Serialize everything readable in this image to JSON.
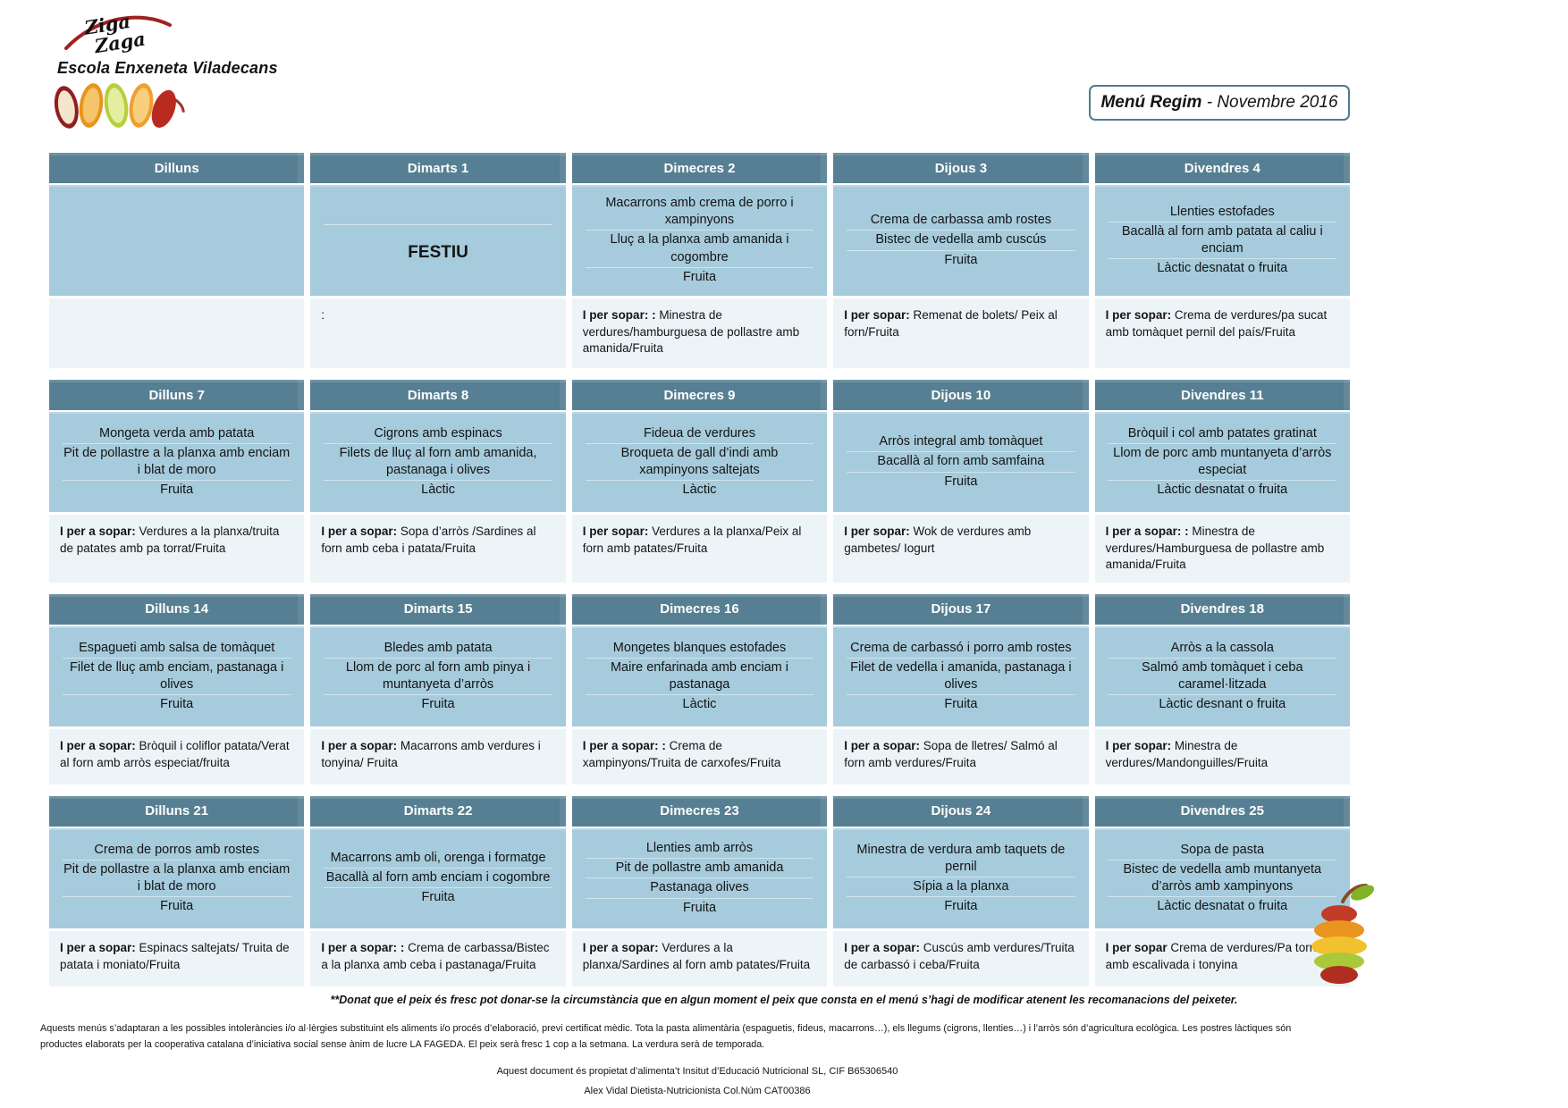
{
  "page": {
    "school_name": "Escola Enxeneta Viladecans",
    "title_bold": "Menú Regim",
    "title_rest": " - Novembre 2016"
  },
  "logo": {
    "line1": "Ziga",
    "line2": "Zaga"
  },
  "theme": {
    "header_bg": "#567f93",
    "menu_bg": "#a6cbdc",
    "sopar_bg": "#edf4f8",
    "title_border": "#4d7b90",
    "accent_red": "#9e2120"
  },
  "weeks": [
    {
      "days": [
        {
          "header": "Dilluns",
          "festiu": "",
          "menu": [],
          "sopar_prefix": "",
          "sopar_text": ""
        },
        {
          "header": "Dimarts 1",
          "festiu": "FESTIU",
          "menu": [],
          "sopar_prefix": "",
          "sopar_text": ":"
        },
        {
          "header": "Dimecres 2",
          "festiu": "",
          "menu": [
            "Macarrons amb crema de porro i xampinyons",
            "Lluç a la planxa  amb amanida i cogombre",
            "Fruita"
          ],
          "sopar_prefix": "I per sopar: :",
          "sopar_text": " Minestra de verdures/hamburguesa de pollastre amb amanida/Fruita"
        },
        {
          "header": "Dijous 3",
          "festiu": "",
          "menu": [
            "Crema de carbassa amb rostes",
            "Bistec de vedella amb cuscús",
            "Fruita"
          ],
          "sopar_prefix": "I per sopar:",
          "sopar_text": " Remenat de bolets/ Peix al forn/Fruita"
        },
        {
          "header": "Divendres 4",
          "festiu": "",
          "menu": [
            "Llenties estofades",
            "Bacallà al forn amb patata al caliu i enciam",
            "Làctic desnatat o fruita"
          ],
          "sopar_prefix": "I per sopar:",
          "sopar_text": " Crema de verdures/pa sucat amb tomàquet pernil del país/Fruita"
        }
      ]
    },
    {
      "days": [
        {
          "header": "Dilluns 7",
          "festiu": "",
          "menu": [
            "Mongeta verda amb patata",
            "Pit de pollastre a la planxa amb enciam i blat de moro",
            "Fruita"
          ],
          "sopar_prefix": "I per a sopar:",
          "sopar_text": "  Verdures a la planxa/truita de patates amb pa torrat/Fruita"
        },
        {
          "header": "Dimarts 8",
          "festiu": "",
          "menu": [
            "Cigrons amb espinacs",
            "Filets de lluç al forn amb amanida, pastanaga i olives",
            "Làctic"
          ],
          "sopar_prefix": "I per a sopar:",
          "sopar_text": "  Sopa d’arròs /Sardines al forn amb ceba i patata/Fruita"
        },
        {
          "header": "Dimecres 9",
          "festiu": "",
          "menu": [
            "Fideua de verdures",
            "Broqueta de gall d’indi amb xampinyons saltejats",
            "Làctic"
          ],
          "sopar_prefix": "I per sopar:",
          "sopar_text": " Verdures a la planxa/Peix al forn amb patates/Fruita"
        },
        {
          "header": "Dijous 10",
          "festiu": "",
          "menu": [
            "Arròs integral amb tomàquet",
            "Bacallà al forn amb samfaina",
            "Fruita"
          ],
          "sopar_prefix": "I per sopar:",
          "sopar_text": "  Wok de verdures amb gambetes/ Iogurt"
        },
        {
          "header": "Divendres 11",
          "festiu": "",
          "menu": [
            "Bròquil i col amb patates gratinat",
            "Llom de porc amb muntanyeta d’arròs especiat",
            "Làctic desnatat o fruita"
          ],
          "sopar_prefix": "I per a sopar: :",
          "sopar_text": "  Minestra de verdures/Hamburguesa de pollastre amb amanida/Fruita"
        }
      ]
    },
    {
      "days": [
        {
          "header": "Dilluns 14",
          "festiu": "",
          "menu": [
            "Espagueti amb salsa de tomàquet",
            "Filet de lluç amb enciam, pastanaga i olives",
            "Fruita"
          ],
          "sopar_prefix": "I per a sopar:",
          "sopar_text": "  Bròquil i coliflor patata/Verat al forn amb arròs especiat/fruita"
        },
        {
          "header": "Dimarts 15",
          "festiu": "",
          "menu": [
            "Bledes amb patata",
            "Llom de porc al forn amb pinya i muntanyeta d’arròs",
            "Fruita"
          ],
          "sopar_prefix": "I per a sopar:",
          "sopar_text": " Macarrons amb verdures i tonyina/ Fruita"
        },
        {
          "header": "Dimecres 16",
          "festiu": "",
          "menu": [
            "Mongetes blanques estofades",
            "Maire enfarinada amb enciam i pastanaga",
            "Làctic"
          ],
          "sopar_prefix": "I  per a sopar: :",
          "sopar_text": "  Crema de xampinyons/Truita de carxofes/Fruita"
        },
        {
          "header": "Dijous 17",
          "festiu": "",
          "menu": [
            "Crema de carbassó i porro amb rostes",
            "Filet de vedella i amanida, pastanaga i olives",
            "Fruita"
          ],
          "sopar_prefix": "I  per a sopar:",
          "sopar_text": "  Sopa de lletres/ Salmó al forn amb verdures/Fruita"
        },
        {
          "header": "Divendres 18",
          "festiu": "",
          "menu": [
            "Arròs a la cassola",
            "Salmó amb tomàquet i ceba caramel·litzada",
            "Làctic desnant o fruita"
          ],
          "sopar_prefix": "I per sopar:",
          "sopar_text": " Minestra de verdures/Mandonguilles/Fruita"
        }
      ]
    },
    {
      "days": [
        {
          "header": "Dilluns 21",
          "festiu": "",
          "menu": [
            "Crema de porros amb rostes",
            "Pit de pollastre a la planxa amb enciam i blat de moro",
            "Fruita"
          ],
          "sopar_prefix": "I per a sopar:",
          "sopar_text": "  Espinacs saltejats/ Truita de patata i moniato/Fruita"
        },
        {
          "header": "Dimarts 22",
          "festiu": "",
          "menu": [
            "Macarrons amb oli, orenga i formatge",
            "Bacallà al forn amb enciam i cogombre",
            "Fruita"
          ],
          "sopar_prefix": "I per a sopar: :",
          "sopar_text": " Crema de carbassa/Bistec a la planxa amb ceba i pastanaga/Fruita"
        },
        {
          "header": "Dimecres 23",
          "festiu": "",
          "menu": [
            "Llenties amb arròs",
            "Pit de pollastre amb amanida",
            "Pastanaga olives",
            "Fruita"
          ],
          "sopar_prefix": "I  per a sopar:",
          "sopar_text": "  Verdures a la planxa/Sardines al forn amb patates/Fruita"
        },
        {
          "header": "Dijous 24",
          "festiu": "",
          "menu": [
            "Minestra de verdura amb taquets de pernil",
            "Sípia a la planxa",
            "Fruita"
          ],
          "sopar_prefix": "I  per a sopar:",
          "sopar_text": "  Cuscús amb verdures/Truita de carbassó i ceba/Fruita"
        },
        {
          "header": "Divendres 25",
          "festiu": "",
          "menu": [
            "Sopa de pasta",
            "Bistec de vedella amb muntanyeta d’arròs amb xampinyons",
            "Làctic desnatat o fruita"
          ],
          "sopar_prefix": "I per sopar",
          "sopar_text": " Crema de verdures/Pa torrat amb escalivada i tonyina"
        }
      ]
    }
  ],
  "footer": {
    "fish_note": "**Donat que el peix és fresc pot donar-se la circumstància que en algun moment el peix que consta en el menú s’hagi de modificar atenent les recomanacions del peixeter.",
    "allergen_note": "Aquests menús s’adaptaran a les possibles intoleràncies i/o al·lèrgies substituint els aliments i/o procés d’elaboració, previ certificat mèdic. Tota la pasta alimentària (espaguetis, fideus, macarrons…), els llegums (cigrons, llenties…) i l’arròs són d’agricultura ecològica. Les postres làctiques són productes elaborats per la cooperativa catalana d’iniciativa social sense ànim de lucre LA FAGEDA. El peix serà fresc 1 cop a la setmana. La verdura serà de temporada.",
    "ownership_line": "Aquest document és propietat d’alimenta’t Insitut d’Educació Nutricional SL, CIF B65306540",
    "dietitian_line": "Alex Vidal Dietista-Nutricionista Col.Núm CAT00386"
  }
}
